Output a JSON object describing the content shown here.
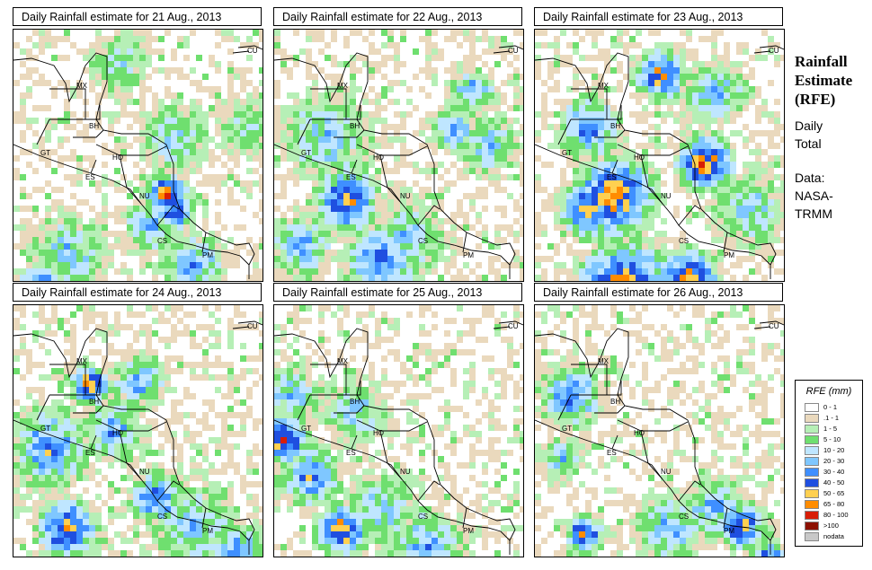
{
  "panels": [
    {
      "title": "Daily Rainfall estimate for  21 Aug., 2013",
      "seed": 21
    },
    {
      "title": "Daily Rainfall estimate for  22 Aug., 2013",
      "seed": 22
    },
    {
      "title": "Daily Rainfall estimate for  23 Aug., 2013",
      "seed": 23
    },
    {
      "title": "Daily Rainfall estimate for  24 Aug., 2013",
      "seed": 24
    },
    {
      "title": "Daily Rainfall estimate for  25 Aug., 2013",
      "seed": 25
    },
    {
      "title": "Daily Rainfall estimate for  26 Aug., 2013",
      "seed": 26
    }
  ],
  "country_labels": [
    "MX",
    "BH",
    "GT",
    "HO",
    "ES",
    "NU",
    "CS",
    "PM",
    "CU"
  ],
  "sidebar": {
    "title_line1": "Rainfall",
    "title_line2": "Estimate",
    "title_line3": "(RFE)",
    "subtitle_line1": "Daily",
    "subtitle_line2": "Total",
    "source_line1": "Data:",
    "source_line2": "NASA-",
    "source_line3": "TRMM"
  },
  "legend": {
    "title": "RFE (mm)",
    "entries": [
      {
        "label": "0 - 1",
        "color": "#ffffff"
      },
      {
        "label": ".1 - 1",
        "color": "#ead9bd"
      },
      {
        "label": "1 - 5",
        "color": "#b6efb6"
      },
      {
        "label": "5 - 10",
        "color": "#6fdf6f"
      },
      {
        "label": "10 - 20",
        "color": "#bfe6ff"
      },
      {
        "label": "20 - 30",
        "color": "#7fc7ff"
      },
      {
        "label": "30 - 40",
        "color": "#3f8fff"
      },
      {
        "label": "40 - 50",
        "color": "#1f4fe0"
      },
      {
        "label": "50 - 65",
        "color": "#ffd050"
      },
      {
        "label": "65 - 80",
        "color": "#ff8c00"
      },
      {
        "label": "80 - 100",
        "color": "#d81e05"
      },
      {
        "label": ">100",
        "color": "#8c1000"
      },
      {
        "label": "nodata",
        "color": "#c8c8c8"
      }
    ]
  }
}
